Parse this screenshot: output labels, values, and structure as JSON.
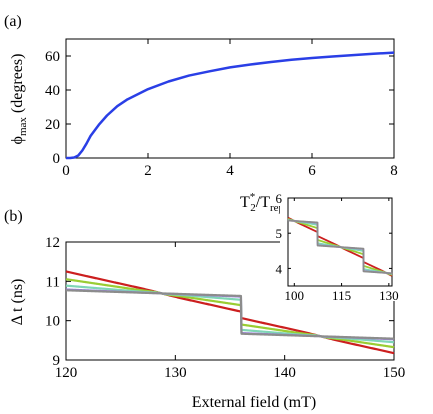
{
  "chart_data": [
    {
      "panel_label": "(a)",
      "type": "line",
      "xlabel": "T",
      "xlabel_sub": "2",
      "xlabel_sup": "*",
      "xlabel_tail": "/T",
      "xlabel_tail_sub": "rep",
      "ylabel": "ϕ",
      "ylabel_sub": "max",
      "ylabel_unit": " (degrees)",
      "xlim": [
        0,
        8
      ],
      "ylim": [
        0,
        70
      ],
      "xticks": [
        "0",
        "2",
        "4",
        "6",
        "8"
      ],
      "yticks": [
        "0",
        "20",
        "40",
        "60"
      ],
      "grid": false,
      "series": [
        {
          "color": "#2a3fe6",
          "x": [
            0.1,
            0.2,
            0.3,
            0.4,
            0.5,
            0.6,
            0.8,
            1.0,
            1.25,
            1.5,
            2.0,
            2.5,
            3.0,
            3.5,
            4.0,
            4.5,
            5.0,
            5.5,
            6.0,
            6.5,
            7.0,
            7.5,
            8.0
          ],
          "y": [
            0,
            0.3,
            1.5,
            4.5,
            8.5,
            13,
            19.5,
            25,
            30.5,
            34.5,
            40.5,
            45,
            48.5,
            51,
            53.3,
            55,
            56.5,
            57.8,
            58.8,
            59.7,
            60.5,
            61.3,
            62
          ]
        }
      ]
    },
    {
      "panel_label": "(b)",
      "type": "line",
      "xlabel": "External field (mT)",
      "ylabel": "Δ t (ns)",
      "xlim": [
        120,
        150
      ],
      "ylim": [
        9,
        12
      ],
      "xticks": [
        "120",
        "130",
        "140",
        "150"
      ],
      "yticks": [
        "9",
        "10",
        "11",
        "12"
      ],
      "grid": false,
      "centers": [
        128.75,
        143.3
      ],
      "series": [
        {
          "color": "#cc1f1f",
          "jump": 0.15,
          "width": 3.0
        },
        {
          "color": "#9acd32",
          "jump": 0.45,
          "width": 1.0
        },
        {
          "color": "#7fd6b6",
          "jump": 0.7,
          "width": 0.6
        },
        {
          "color": "#9a7fe0",
          "jump": 0.85,
          "width": 0.3
        },
        {
          "color": "#8c8c8c",
          "jump": 0.88,
          "width": 0.12
        }
      ],
      "trend": {
        "x0": 120,
        "y0": 11.35,
        "x1": 150,
        "y1": 9.1
      }
    },
    {
      "panel_label": "",
      "type": "line",
      "role": "inset",
      "xlim": [
        98,
        131
      ],
      "ylim": [
        3.5,
        6
      ],
      "xticks": [
        "100",
        "115",
        "130"
      ],
      "yticks": [
        "4",
        "5",
        "6"
      ],
      "grid": false,
      "centers": [
        100,
        114.7,
        129.2
      ],
      "series": [
        {
          "color": "#cc1f1f",
          "jump": 0.15,
          "width": 2.5
        },
        {
          "color": "#9acd32",
          "jump": 0.45,
          "width": 0.9
        },
        {
          "color": "#7fd6b6",
          "jump": 0.7,
          "width": 0.5
        },
        {
          "color": "#9a7fe0",
          "jump": 0.85,
          "width": 0.25
        },
        {
          "color": "#8c8c8c",
          "jump": 0.88,
          "width": 0.1
        }
      ],
      "trend": {
        "x0": 98,
        "y0": 5.45,
        "x1": 131,
        "y1": 3.78
      }
    }
  ]
}
